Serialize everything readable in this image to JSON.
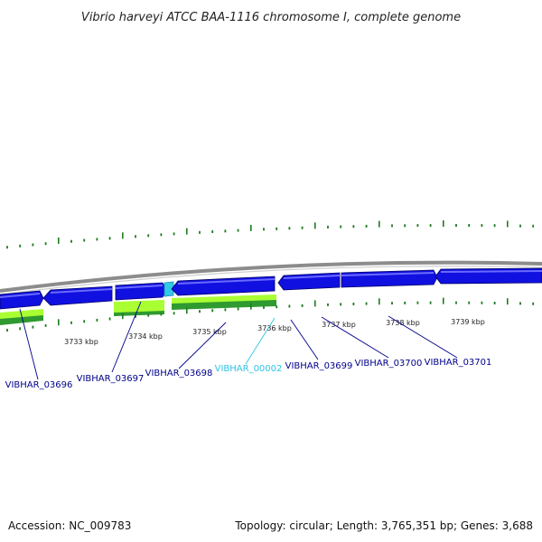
{
  "title": "Vibrio harveyi ATCC BAA-1116 chromosome I, complete genome",
  "footer": {
    "accession": "Accession: NC_009783",
    "summary": "Topology: circular; Length: 3,765,351 bp; Genes: 3,688"
  },
  "colors": {
    "backbone": "#8c8c8c",
    "gene_blue": "#1010e0",
    "gene_highlight": "#33c8e8",
    "feature_lime": "#aaff33",
    "feature_green": "#2f9a2f",
    "tick_green": "#1f7a1f",
    "label_blue": "#00008b",
    "label_cyan": "#2ec4e6"
  },
  "scale_labels": [
    "3733 kbp",
    "3734 kbp",
    "3735 kbp",
    "3736 kbp",
    "3737 kbp",
    "3738 kbp",
    "3739 kbp"
  ],
  "gene_labels": [
    {
      "id": "VIBHAR_03696",
      "highlight": false
    },
    {
      "id": "VIBHAR_03697",
      "highlight": false
    },
    {
      "id": "VIBHAR_03698",
      "highlight": false
    },
    {
      "id": "VIBHAR_00002",
      "highlight": true
    },
    {
      "id": "VIBHAR_03699",
      "highlight": false
    },
    {
      "id": "VIBHAR_03700",
      "highlight": false
    },
    {
      "id": "VIBHAR_03701",
      "highlight": false
    }
  ]
}
